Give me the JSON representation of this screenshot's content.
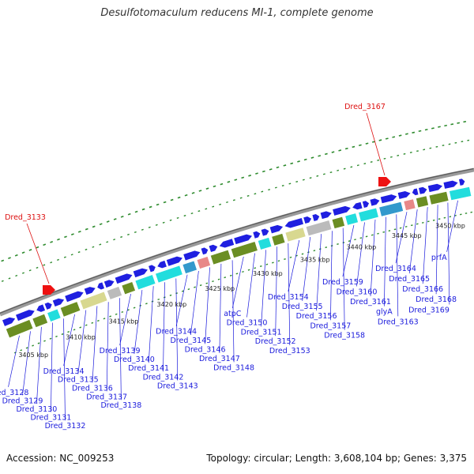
{
  "title": "Desulfotomaculum reducens MI-1, complete genome",
  "footer": {
    "accession": "Accession: NC_009253",
    "summary": "Topology: circular; Length: 3,608,104 bp; Genes: 3,375"
  },
  "colors": {
    "backbone": "#8c8c8c",
    "gene_blue": "#1f1fe0",
    "highlight_red": "#ee1111",
    "label_blue": "#1a1adc",
    "label_red": "#dd1111",
    "tick_green": "#2e8b2e",
    "cog_olive": "#6b8e23",
    "cog_cyan": "#22dddd"
  },
  "scale_labels": [
    "3405 kbp",
    "3410 kbp",
    "3415 kbp",
    "3420 kbp",
    "3425 kbp",
    "3430 kbp",
    "3435 kbp",
    "3440 kbp",
    "3445 kbp",
    "3450 kbp"
  ],
  "highlighted_genes": [
    "Dred_3133",
    "Dred_3167"
  ],
  "gene_labels": [
    "Dred_3128",
    "Dred_3129",
    "Dred_3130",
    "Dred_3131",
    "Dred_3132",
    "Dred_3134",
    "Dred_3135",
    "Dred_3136",
    "Dred_3137",
    "Dred_3138",
    "Dred_3139",
    "Dred_3140",
    "Dred_3141",
    "Dred_3142",
    "Dred_3143",
    "Dred_3144",
    "Dred_3145",
    "Dred_3146",
    "Dred_3147",
    "Dred_3148",
    "atpC",
    "Dred_3150",
    "Dred_3151",
    "Dred_3152",
    "Dred_3153",
    "Dred_3154",
    "Dred_3155",
    "Dred_3156",
    "Dred_3157",
    "Dred_3158",
    "Dred_3159",
    "Dred_3160",
    "Dred_3161",
    "glyA",
    "Dred_3163",
    "Dred_3164",
    "Dred_3165",
    "Dred_3166",
    "Dred_3168",
    "Dred_3169",
    "prfA"
  ]
}
